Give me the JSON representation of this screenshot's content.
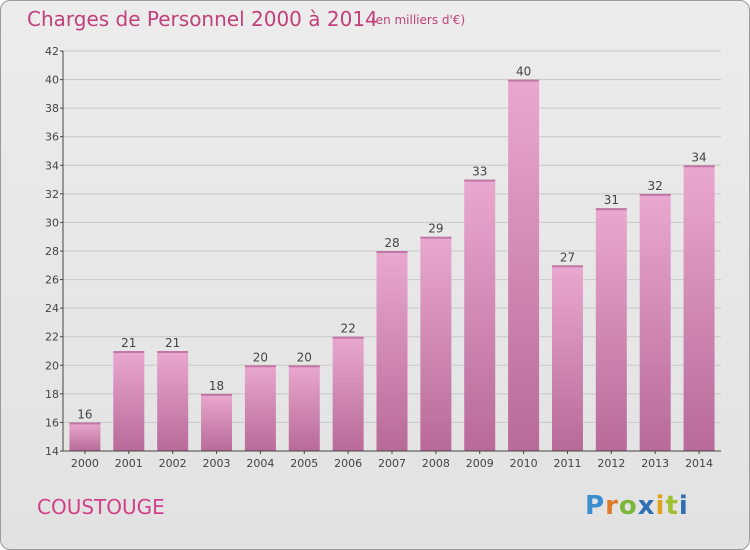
{
  "title": "Charges de Personnel 2000 à 2014",
  "subtitle": "(en milliers d'€)",
  "commune": "COUSTOUGE",
  "logo": {
    "letters": [
      "P",
      "r",
      "o",
      "x",
      "i",
      "t",
      "i"
    ],
    "colors": [
      "#3a8ed0",
      "#e07b2a",
      "#7ab83a",
      "#2f6fb5",
      "#e0a020",
      "#a0c030",
      "#2f6fb5"
    ]
  },
  "colors": {
    "bar_top": "#e9a8cf",
    "bar_bottom": "#b86a98",
    "text": "#c2407c",
    "axis": "#444444",
    "grid": "#c8c8c8"
  },
  "chart_data": {
    "type": "bar",
    "title": "Charges de Personnel 2000 à 2014",
    "subtitle": "(en milliers d'€)",
    "categories": [
      "2000",
      "2001",
      "2002",
      "2003",
      "2004",
      "2005",
      "2006",
      "2007",
      "2008",
      "2009",
      "2010",
      "2011",
      "2012",
      "2013",
      "2014"
    ],
    "values": [
      16,
      21,
      21,
      18,
      20,
      20,
      22,
      28,
      29,
      33,
      40,
      27,
      31,
      32,
      34
    ],
    "ylim": [
      14,
      42
    ],
    "yticks": [
      14,
      16,
      18,
      20,
      22,
      24,
      26,
      28,
      30,
      32,
      34,
      36,
      38,
      40,
      42
    ],
    "grid": true,
    "data_labels": true
  }
}
